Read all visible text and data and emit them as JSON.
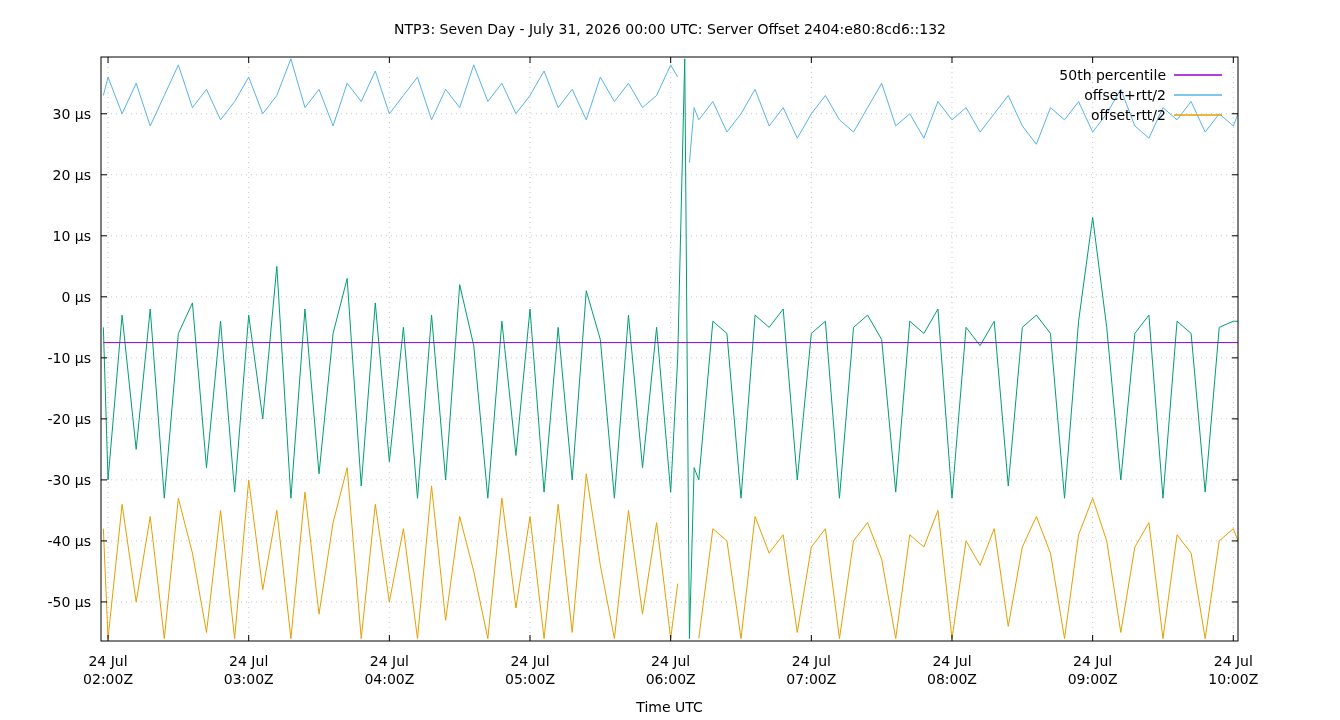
{
  "chart_data": {
    "type": "line",
    "title": "NTP3: Seven Day - July 31, 2026 00:00 UTC: Server Offset 2404:e80:8cd6::132",
    "xlabel": "Time UTC",
    "x": [
      "2026-07-24T01:58",
      "2026-07-24T02:00",
      "2026-07-24T02:06",
      "2026-07-24T02:12",
      "2026-07-24T02:18",
      "2026-07-24T02:24",
      "2026-07-24T02:30",
      "2026-07-24T02:36",
      "2026-07-24T02:42",
      "2026-07-24T02:48",
      "2026-07-24T02:54",
      "2026-07-24T03:00",
      "2026-07-24T03:06",
      "2026-07-24T03:12",
      "2026-07-24T03:18",
      "2026-07-24T03:24",
      "2026-07-24T03:30",
      "2026-07-24T03:36",
      "2026-07-24T03:42",
      "2026-07-24T03:48",
      "2026-07-24T03:54",
      "2026-07-24T04:00",
      "2026-07-24T04:06",
      "2026-07-24T04:12",
      "2026-07-24T04:18",
      "2026-07-24T04:24",
      "2026-07-24T04:30",
      "2026-07-24T04:36",
      "2026-07-24T04:42",
      "2026-07-24T04:48",
      "2026-07-24T04:54",
      "2026-07-24T05:00",
      "2026-07-24T05:06",
      "2026-07-24T05:12",
      "2026-07-24T05:18",
      "2026-07-24T05:24",
      "2026-07-24T05:30",
      "2026-07-24T05:36",
      "2026-07-24T05:42",
      "2026-07-24T05:48",
      "2026-07-24T05:54",
      "2026-07-24T06:00",
      "2026-07-24T06:03",
      "2026-07-24T06:06",
      "2026-07-24T06:08",
      "2026-07-24T06:10",
      "2026-07-24T06:12",
      "2026-07-24T06:18",
      "2026-07-24T06:24",
      "2026-07-24T06:30",
      "2026-07-24T06:36",
      "2026-07-24T06:42",
      "2026-07-24T06:48",
      "2026-07-24T06:54",
      "2026-07-24T07:00",
      "2026-07-24T07:06",
      "2026-07-24T07:12",
      "2026-07-24T07:18",
      "2026-07-24T07:24",
      "2026-07-24T07:30",
      "2026-07-24T07:36",
      "2026-07-24T07:42",
      "2026-07-24T07:48",
      "2026-07-24T07:54",
      "2026-07-24T08:00",
      "2026-07-24T08:06",
      "2026-07-24T08:12",
      "2026-07-24T08:18",
      "2026-07-24T08:24",
      "2026-07-24T08:30",
      "2026-07-24T08:36",
      "2026-07-24T08:42",
      "2026-07-24T08:48",
      "2026-07-24T08:54",
      "2026-07-24T09:00",
      "2026-07-24T09:06",
      "2026-07-24T09:12",
      "2026-07-24T09:18",
      "2026-07-24T09:24",
      "2026-07-24T09:30",
      "2026-07-24T09:36",
      "2026-07-24T09:42",
      "2026-07-24T09:48",
      "2026-07-24T09:54",
      "2026-07-24T10:00",
      "2026-07-24T10:02"
    ],
    "xlim": [
      "2026-07-24T01:57",
      "2026-07-24T10:02"
    ],
    "xticks": [
      {
        "value": "2026-07-24T02:00",
        "label": "24 Jul\n02:00Z"
      },
      {
        "value": "2026-07-24T03:00",
        "label": "24 Jul\n03:00Z"
      },
      {
        "value": "2026-07-24T04:00",
        "label": "24 Jul\n04:00Z"
      },
      {
        "value": "2026-07-24T05:00",
        "label": "24 Jul\n05:00Z"
      },
      {
        "value": "2026-07-24T06:00",
        "label": "24 Jul\n06:00Z"
      },
      {
        "value": "2026-07-24T07:00",
        "label": "24 Jul\n07:00Z"
      },
      {
        "value": "2026-07-24T08:00",
        "label": "24 Jul\n08:00Z"
      },
      {
        "value": "2026-07-24T09:00",
        "label": "24 Jul\n09:00Z"
      },
      {
        "value": "2026-07-24T10:00",
        "label": "24 Jul\n10:00Z"
      }
    ],
    "ylim": [
      -56.4,
      39.3
    ],
    "yticks": [
      {
        "value": -50,
        "label": "-50 µs"
      },
      {
        "value": -40,
        "label": "-40 µs"
      },
      {
        "value": -30,
        "label": "-30 µs"
      },
      {
        "value": -20,
        "label": "-20 µs"
      },
      {
        "value": -10,
        "label": "-10 µs"
      },
      {
        "value": 0,
        "label": "0 µs"
      },
      {
        "value": 10,
        "label": "10 µs"
      },
      {
        "value": 20,
        "label": "20 µs"
      },
      {
        "value": 30,
        "label": "30 µs"
      }
    ],
    "grid": true,
    "legend": "top right",
    "line_style": "solid",
    "marker": "none",
    "series": [
      {
        "name": "50th percentile",
        "color": "#9400d3",
        "x": [
          "2026-07-24T01:58",
          "2026-07-24T10:02"
        ],
        "values": [
          -7.5,
          -7.5
        ]
      },
      {
        "color": "#009e73",
        "values": [
          -5,
          -30,
          -3,
          -25,
          -2,
          -33,
          -6,
          -1,
          -28,
          -4,
          -32,
          -3,
          -20,
          5,
          -33,
          -2,
          -29,
          -6,
          3,
          -31,
          -1,
          -27,
          -5,
          -33,
          -3,
          -30,
          2,
          -8,
          -33,
          -4,
          -26,
          -2,
          -32,
          -5,
          -30,
          1,
          -7,
          -33,
          -3,
          -28,
          -5,
          -32,
          -10,
          39,
          -56,
          -28,
          -30,
          -4,
          -6,
          -33,
          -3,
          -5,
          -2,
          -30,
          -6,
          -4,
          -33,
          -5,
          -3,
          -7,
          -32,
          -4,
          -6,
          -2,
          -33,
          -5,
          -8,
          -4,
          -31,
          -5,
          -3,
          -6,
          -33,
          -4,
          13,
          -5,
          -30,
          -6,
          -3,
          -33,
          -4,
          -6,
          -32,
          -5,
          -4,
          -4
        ]
      },
      {
        "name": "offset+rtt/2",
        "color": "#56b4e9",
        "values": [
          33,
          36,
          30,
          35,
          28,
          33,
          38,
          31,
          34,
          29,
          32,
          36,
          30,
          33,
          39,
          31,
          34,
          28,
          35,
          32,
          37,
          30,
          33,
          36,
          29,
          34,
          31,
          38,
          32,
          35,
          30,
          33,
          37,
          31,
          34,
          29,
          36,
          32,
          35,
          31,
          33,
          38,
          36,
          null,
          22,
          31,
          29,
          32,
          27,
          30,
          34,
          28,
          31,
          26,
          30,
          33,
          29,
          27,
          31,
          35,
          28,
          30,
          26,
          32,
          29,
          31,
          27,
          30,
          33,
          28,
          25,
          31,
          29,
          32,
          27,
          30,
          34,
          28,
          26,
          31,
          29,
          32,
          27,
          30,
          28,
          30
        ]
      },
      {
        "name": "offset-rtt/2",
        "color": "#e69f00",
        "values": [
          -38,
          -56,
          -34,
          -50,
          -36,
          -56,
          -33,
          -42,
          -55,
          -35,
          -56,
          -30,
          -48,
          -35,
          -56,
          -32,
          -52,
          -37,
          -28,
          -56,
          -34,
          -50,
          -38,
          -56,
          -31,
          -53,
          -36,
          -45,
          -56,
          -33,
          -51,
          -36,
          -56,
          -34,
          -55,
          -29,
          -44,
          -56,
          -35,
          -52,
          -37,
          -56,
          -47,
          null,
          null,
          null,
          -56,
          -38,
          -40,
          -56,
          -36,
          -42,
          -39,
          -55,
          -41,
          -38,
          -56,
          -40,
          -37,
          -43,
          -56,
          -39,
          -41,
          -35,
          -56,
          -40,
          -44,
          -38,
          -54,
          -41,
          -36,
          -42,
          -56,
          -39,
          -33,
          -40,
          -55,
          -41,
          -37,
          -56,
          -39,
          -42,
          -56,
          -40,
          -38,
          -40
        ]
      }
    ]
  }
}
